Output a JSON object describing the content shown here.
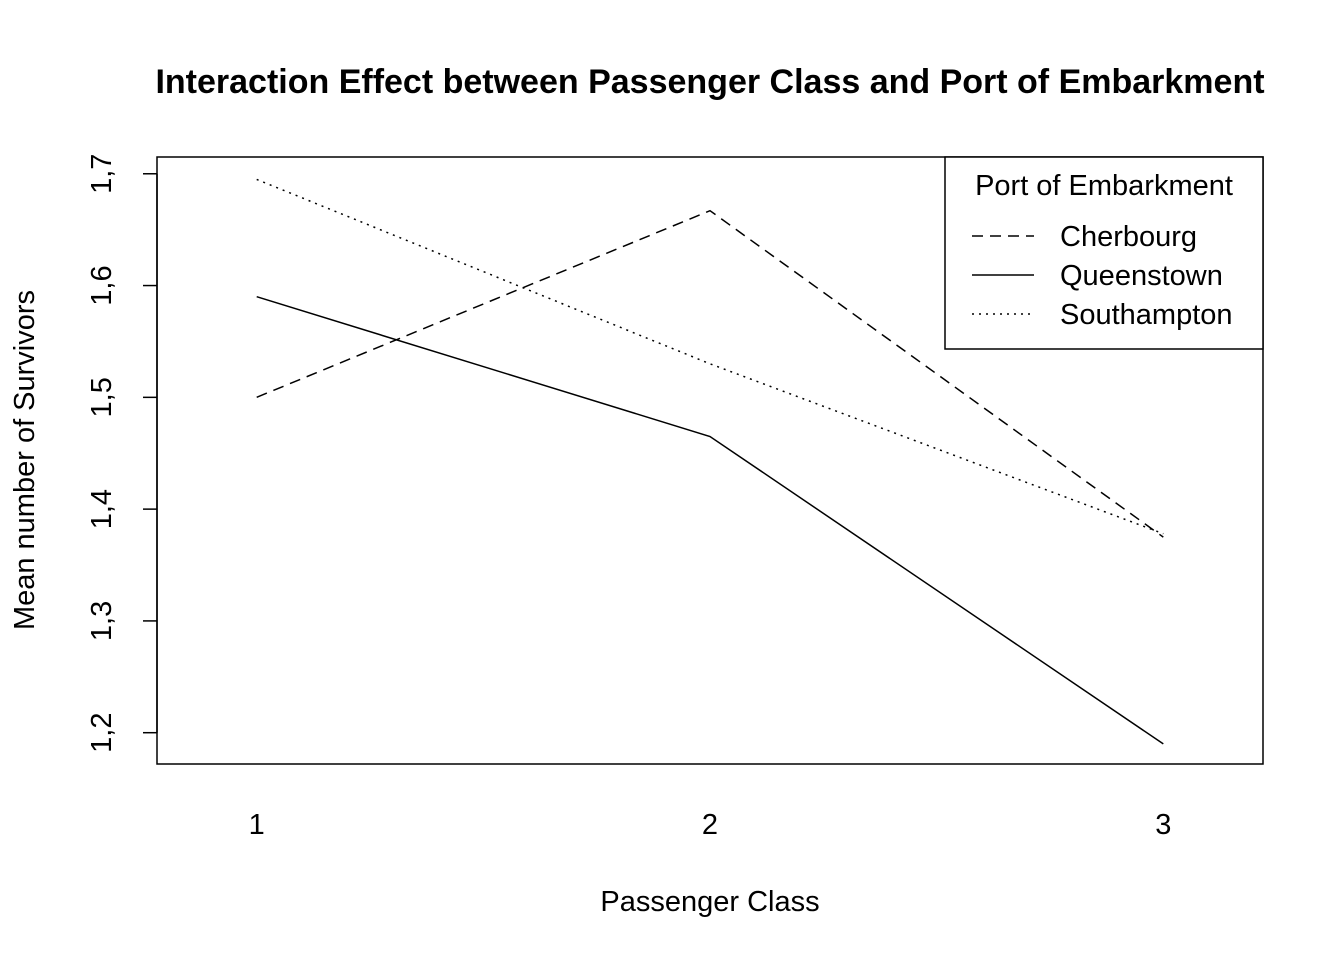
{
  "chart_data": {
    "type": "line",
    "title": "Interaction Effect between Passenger Class and Port of Embarkment",
    "xlabel": "Passenger Class",
    "ylabel": "Mean number of Survivors",
    "x": [
      1,
      2,
      3
    ],
    "x_tick_labels": [
      "1",
      "2",
      "3"
    ],
    "xlim": [
      0.78,
      3.22
    ],
    "ylim": [
      1.172,
      1.715
    ],
    "y_ticks": [
      1.2,
      1.3,
      1.4,
      1.5,
      1.6,
      1.7
    ],
    "y_tick_labels": [
      "1,2",
      "1,3",
      "1,4",
      "1,5",
      "1,6",
      "1,7"
    ],
    "grid": false,
    "legend": {
      "title": "Port of Embarkment",
      "position": "top-right"
    },
    "series": [
      {
        "name": "Cherbourg",
        "line_style": "dashed",
        "values": [
          1.5,
          1.667,
          1.375
        ]
      },
      {
        "name": "Queenstown",
        "line_style": "solid",
        "values": [
          1.59,
          1.465,
          1.19
        ]
      },
      {
        "name": "Southampton",
        "line_style": "dotted",
        "values": [
          1.695,
          1.53,
          1.378
        ]
      }
    ],
    "colors": {
      "line": "#000000",
      "background": "#ffffff"
    }
  }
}
